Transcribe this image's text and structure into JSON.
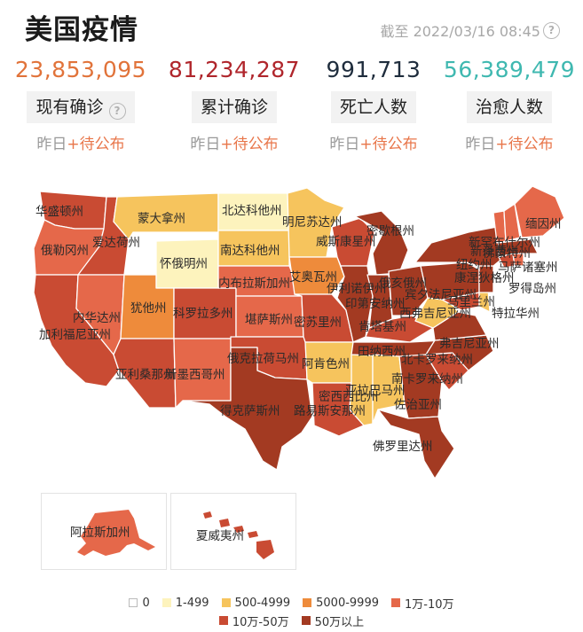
{
  "title": "美国疫情",
  "as_of": "截至 2022/03/16 08:45",
  "colors": {
    "c0": "#ffffff",
    "c1": "#fdf3bd",
    "c2": "#f6c45d",
    "c3": "#ee8b3b",
    "c4": "#e5684a",
    "c5": "#c94b33",
    "c6": "#a33a22"
  },
  "stats": [
    {
      "value": "23,853,095",
      "label": "现有确诊",
      "has_help": true,
      "color": "#e1733a",
      "sub_prefix": "昨日",
      "sub_value": "+待公布"
    },
    {
      "value": "81,234,287",
      "label": "累计确诊",
      "has_help": false,
      "color": "#b0262c",
      "sub_prefix": "昨日",
      "sub_value": "+待公布"
    },
    {
      "value": "991,713",
      "label": "死亡人数",
      "has_help": false,
      "color": "#1f2d3d",
      "sub_prefix": "昨日",
      "sub_value": "+待公布"
    },
    {
      "value": "56,389,479",
      "label": "治愈人数",
      "has_help": false,
      "color": "#3fb8b0",
      "sub_prefix": "昨日",
      "sub_value": "+待公布"
    }
  ],
  "states": [
    {
      "name": "华盛顿州",
      "level": 5
    },
    {
      "name": "俄勒冈州",
      "level": 4
    },
    {
      "name": "加利福尼亚州",
      "level": 5
    },
    {
      "name": "爱达荷州",
      "level": 5
    },
    {
      "name": "内华达州",
      "level": 4
    },
    {
      "name": "蒙大拿州",
      "level": 2
    },
    {
      "name": "怀俄明州",
      "level": 1
    },
    {
      "name": "犹他州",
      "level": 3
    },
    {
      "name": "亚利桑那州",
      "level": 5
    },
    {
      "name": "科罗拉多州",
      "level": 5
    },
    {
      "name": "新墨西哥州",
      "level": 4
    },
    {
      "name": "北达科他州",
      "level": 1
    },
    {
      "name": "南达科他州",
      "level": 2
    },
    {
      "name": "内布拉斯加州",
      "level": 4
    },
    {
      "name": "堪萨斯州",
      "level": 4
    },
    {
      "name": "俄克拉荷马州",
      "level": 5
    },
    {
      "name": "得克萨斯州",
      "level": 6
    },
    {
      "name": "明尼苏达州",
      "level": 2
    },
    {
      "name": "艾奥瓦州",
      "level": 3
    },
    {
      "name": "密苏里州",
      "level": 5
    },
    {
      "name": "阿肯色州",
      "level": 2
    },
    {
      "name": "路易斯安那州",
      "level": 5
    },
    {
      "name": "威斯康星州",
      "level": 5
    },
    {
      "name": "伊利诺伊州",
      "level": 6
    },
    {
      "name": "密西西比州",
      "level": 2
    },
    {
      "name": "密歇根州",
      "level": 6
    },
    {
      "name": "印第安纳州",
      "level": 6
    },
    {
      "name": "俄亥俄州",
      "level": 6
    },
    {
      "name": "肯塔基州",
      "level": 5
    },
    {
      "name": "田纳西州",
      "level": 6
    },
    {
      "name": "亚拉巴马州",
      "level": 2
    },
    {
      "name": "佐治亚州",
      "level": 6
    },
    {
      "name": "佛罗里达州",
      "level": 6
    },
    {
      "name": "南卡罗来纳州",
      "level": 5
    },
    {
      "name": "北卡罗来纳州",
      "level": 6
    },
    {
      "name": "弗吉尼亚州",
      "level": 6
    },
    {
      "name": "西弗吉尼亚州",
      "level": 2
    },
    {
      "name": "马里兰州",
      "level": 5
    },
    {
      "name": "特拉华州",
      "level": 2
    },
    {
      "name": "宾夕法尼亚州",
      "level": 6
    },
    {
      "name": "新泽西州",
      "level": 6
    },
    {
      "name": "纽约州",
      "level": 6
    },
    {
      "name": "康涅狄格州",
      "level": 5
    },
    {
      "name": "罗得岛州",
      "level": 4
    },
    {
      "name": "马萨诸塞州",
      "level": 6
    },
    {
      "name": "佛蒙特州",
      "level": 4
    },
    {
      "name": "新罕布什尔州",
      "level": 4
    },
    {
      "name": "缅因州",
      "level": 4
    },
    {
      "name": "阿拉斯加州",
      "level": 4
    },
    {
      "name": "夏威夷州",
      "level": 5
    }
  ],
  "legend": [
    {
      "label": "0",
      "level": 0
    },
    {
      "label": "1-499",
      "level": 1
    },
    {
      "label": "500-4999",
      "level": 2
    },
    {
      "label": "5000-9999",
      "level": 3
    },
    {
      "label": "1万-10万",
      "level": 4
    },
    {
      "label": "10万-50万",
      "level": 5
    },
    {
      "label": "50万以上",
      "level": 6
    }
  ]
}
